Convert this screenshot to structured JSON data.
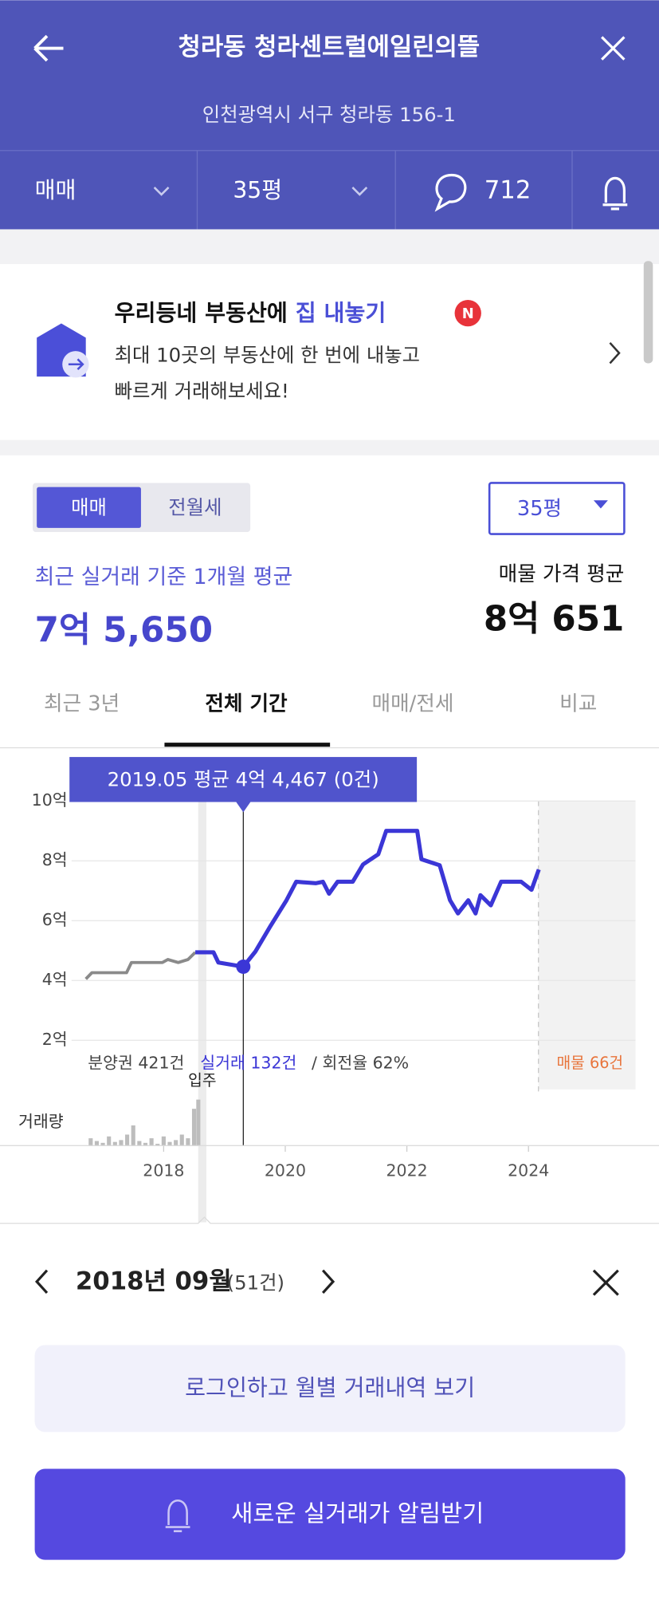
{
  "header": {
    "title": "청라동 청라센트럴에일린의뜰",
    "address": "인천광역시 서구 청라동 156-1",
    "tabs": {
      "deal": "매매",
      "size": "35평",
      "comments": "712"
    }
  },
  "banner": {
    "title_prefix": "우리등네 부동산에",
    "title_highlight": "집 내놓기",
    "badge": "N",
    "lines": [
      "최대 10곳의 부동산에 한 번에 내놓고",
      "빠르게 거래해보세요!"
    ]
  },
  "summary": {
    "toggle": [
      "매매",
      "전월세"
    ],
    "size_select": "35평",
    "recent_label": "최근 실거래 기준 1개월 평균",
    "recent_value": "7억 5,650",
    "listing_label": "매물 가격 평균",
    "listing_value": "8억 651"
  },
  "period_tabs": [
    "최근 3년",
    "전체 기간",
    "매매/전세",
    "비교"
  ],
  "chart_data": {
    "type": "line",
    "tooltip": "2019.05 평균 4억 4,467 (0건)",
    "xlim": [
      2016.72,
      2025.76
    ],
    "xticks": [
      2018,
      2020,
      2022,
      2024
    ],
    "ylim": [
      2,
      10
    ],
    "yticks": [
      {
        "value": 10,
        "label": "10억"
      },
      {
        "value": 8,
        "label": "8억"
      },
      {
        "value": 6,
        "label": "6억"
      },
      {
        "value": 4,
        "label": "4억"
      },
      {
        "value": 2,
        "label": "2억"
      }
    ],
    "grid": true,
    "series": [
      {
        "color": "#8a8a8a",
        "x": [
          2016.72,
          2016.82,
          2017.39,
          2017.47,
          2017.98,
          2018.07,
          2018.24,
          2018.4,
          2018.52
        ],
        "values": [
          4.05,
          4.26,
          4.26,
          4.6,
          4.6,
          4.7,
          4.6,
          4.7,
          4.94
        ]
      },
      {
        "color": "#3b36d6",
        "x": [
          2018.52,
          2018.82,
          2018.9,
          2019.31,
          2019.51,
          2019.76,
          2020.02,
          2020.18,
          2020.5,
          2020.62,
          2020.72,
          2020.86,
          2021.11,
          2021.28,
          2021.53,
          2021.66,
          2022.17,
          2022.24,
          2022.54,
          2022.71,
          2022.84,
          2023.01,
          2023.13,
          2023.21,
          2023.38,
          2023.55,
          2023.88,
          2024.05,
          2024.17
        ],
        "values": [
          4.94,
          4.94,
          4.6,
          4.46,
          4.97,
          5.83,
          6.68,
          7.3,
          7.25,
          7.3,
          6.9,
          7.3,
          7.3,
          7.88,
          8.22,
          9.0,
          9.0,
          8.05,
          7.85,
          6.68,
          6.24,
          6.68,
          6.24,
          6.85,
          6.51,
          7.3,
          7.3,
          7.03,
          7.71
        ]
      }
    ],
    "volume": {
      "label": "거래량",
      "color": "#bdbdbd",
      "ylim": [
        0,
        50
      ],
      "x": [
        2016.8,
        2016.9,
        2017.0,
        2017.1,
        2017.2,
        2017.3,
        2017.4,
        2017.5,
        2017.6,
        2017.7,
        2017.8,
        2017.9,
        2018.0,
        2018.1,
        2018.2,
        2018.3,
        2018.4,
        2018.5,
        2018.57
      ],
      "values": [
        8,
        5,
        3,
        10,
        4,
        6,
        12,
        22,
        5,
        3,
        8,
        2,
        10,
        4,
        6,
        12,
        8,
        40,
        50
      ]
    },
    "annotations": {
      "presale": "분양권 421건",
      "deals": "실거래 132건",
      "turnover": "/ 회전율 62%",
      "listings": "매물 66건",
      "move_in": "입주"
    }
  },
  "month_nav": {
    "month": "2018년 09월",
    "count": "(51건)"
  },
  "buttons": {
    "login": "로그인하고 월별 거래내역 보기",
    "alert": "새로운 실거래가 알림받기"
  }
}
